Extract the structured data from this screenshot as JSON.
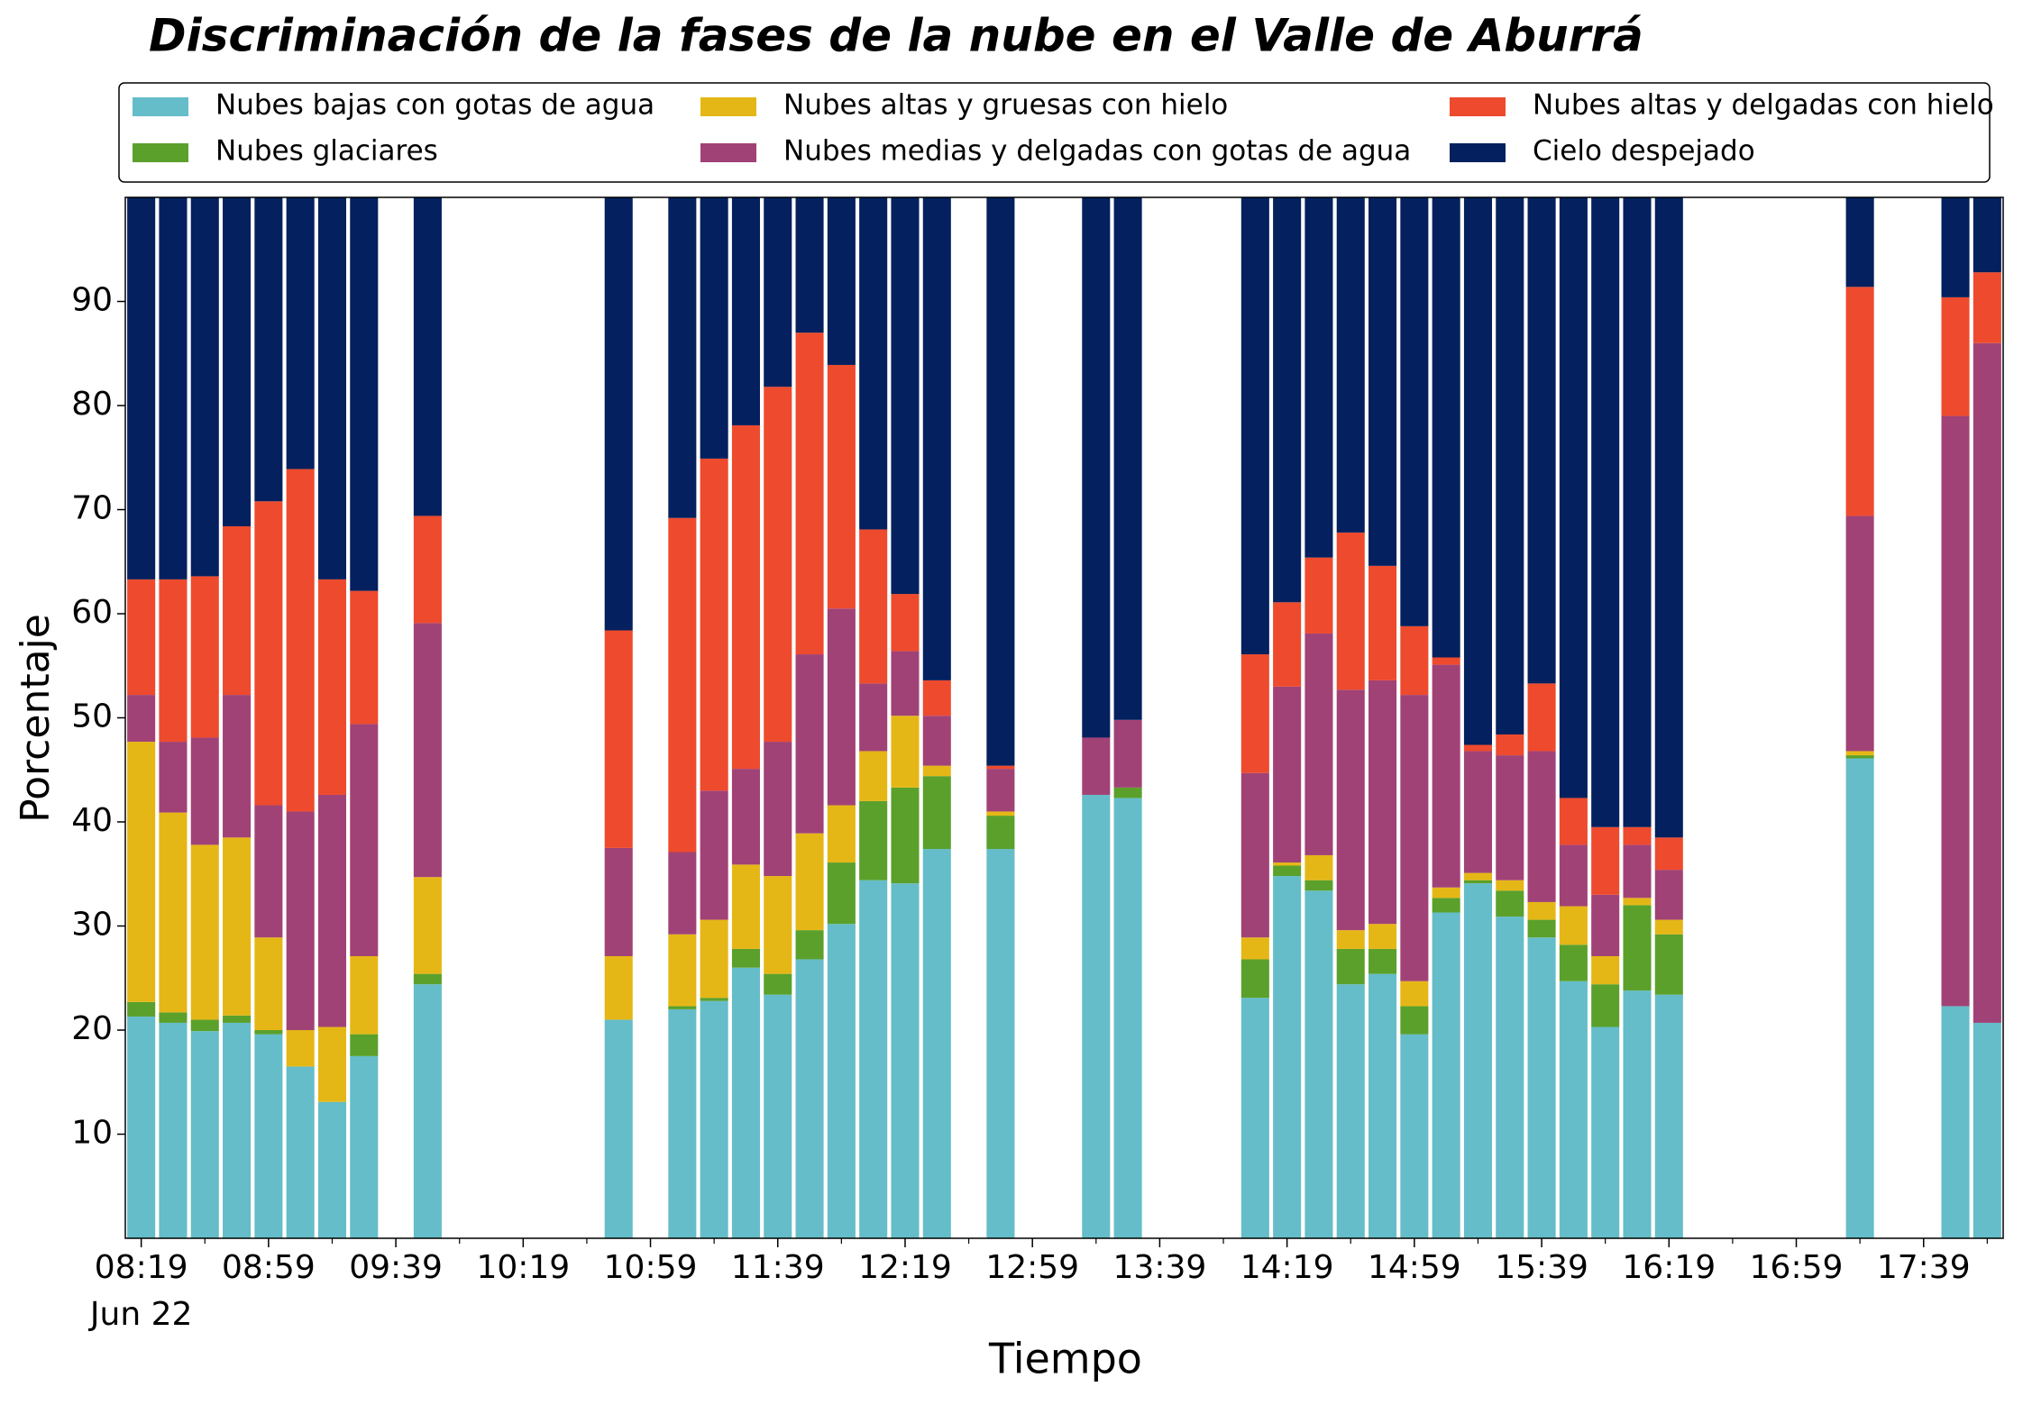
{
  "chart_data": {
    "type": "stacked_bar",
    "title": "Discriminación de la fases de la nube en el Valle de Aburrá",
    "x_label": "Tiempo",
    "y_label": "Porcentaje",
    "x": [
      "08:19",
      "08:29",
      "08:39",
      "08:49",
      "08:59",
      "09:09",
      "09:19",
      "09:29",
      "09:49",
      "10:49",
      "11:09",
      "11:19",
      "11:29",
      "11:39",
      "11:49",
      "11:59",
      "12:09",
      "12:19",
      "12:29",
      "12:49",
      "13:19",
      "13:29",
      "14:09",
      "14:19",
      "14:29",
      "14:39",
      "14:49",
      "14:59",
      "15:09",
      "15:19",
      "15:29",
      "15:39",
      "15:49",
      "15:59",
      "16:09",
      "16:19",
      "17:19",
      "17:49",
      "17:59"
    ],
    "series": [
      {
        "name": "Nubes bajas con gotas de agua",
        "color": "#65bdc9",
        "values": [
          21.3,
          20.7,
          19.9,
          20.7,
          19.6,
          16.5,
          13.1,
          17.5,
          24.4,
          21.0,
          22.0,
          22.8,
          26.0,
          23.4,
          26.8,
          30.2,
          34.4,
          34.1,
          37.4,
          37.4,
          42.6,
          42.3,
          23.1,
          34.8,
          33.4,
          24.4,
          25.4,
          19.6,
          31.3,
          34.1,
          30.9,
          28.9,
          24.7,
          20.3,
          23.8,
          23.4,
          46.1,
          22.3,
          20.7
        ]
      },
      {
        "name": "Nubes glaciares",
        "color": "#5ba02b",
        "values": [
          1.4,
          1.0,
          1.1,
          0.7,
          0.4,
          0,
          0,
          2.1,
          1.0,
          0,
          0.3,
          0.3,
          1.8,
          2.0,
          2.8,
          5.9,
          7.6,
          9.2,
          7.0,
          3.2,
          0,
          1.0,
          3.7,
          1.0,
          1.0,
          3.4,
          2.4,
          2.7,
          1.4,
          0.3,
          2.5,
          1.7,
          3.5,
          4.1,
          8.2,
          5.8,
          0.3,
          0,
          0
        ]
      },
      {
        "name": "Nubes altas y gruesas con hielo",
        "color": "#e5b716",
        "values": [
          25.0,
          19.2,
          16.8,
          17.1,
          8.9,
          3.5,
          7.2,
          7.5,
          9.3,
          6.1,
          6.9,
          7.5,
          8.1,
          9.4,
          9.3,
          5.5,
          4.8,
          6.9,
          1.0,
          0.4,
          0,
          0,
          2.1,
          0.3,
          2.4,
          1.8,
          2.4,
          2.4,
          1.0,
          0.7,
          1.0,
          1.7,
          3.7,
          2.7,
          0.7,
          1.4,
          0.4,
          0,
          0
        ]
      },
      {
        "name": "Nubes medias y delgadas con gotas de agua",
        "color": "#a14276",
        "values": [
          4.5,
          6.8,
          10.3,
          13.7,
          12.7,
          21.0,
          22.3,
          22.3,
          24.4,
          10.4,
          7.9,
          12.4,
          9.2,
          12.9,
          17.2,
          18.9,
          6.5,
          6.2,
          4.8,
          4.1,
          5.5,
          6.5,
          15.8,
          16.9,
          21.3,
          23.1,
          23.4,
          27.5,
          21.4,
          11.7,
          12.0,
          14.5,
          5.9,
          5.9,
          5.1,
          4.8,
          22.6,
          56.7,
          65.3
        ]
      },
      {
        "name": "Nubes altas y delgadas con hielo",
        "color": "#ee4a2d",
        "values": [
          11.1,
          15.6,
          15.5,
          16.2,
          29.2,
          32.9,
          20.7,
          12.8,
          10.3,
          20.9,
          32.1,
          31.9,
          33.0,
          34.1,
          30.9,
          23.4,
          14.8,
          5.5,
          3.4,
          0.3,
          0,
          0,
          11.4,
          8.1,
          7.3,
          15.1,
          11.0,
          6.6,
          0.7,
          0.6,
          2.0,
          6.5,
          4.5,
          6.5,
          1.7,
          3.1,
          22.0,
          11.4,
          6.8
        ]
      },
      {
        "name": "Cielo despejado",
        "color": "#04205e",
        "values": [
          36.7,
          36.7,
          36.4,
          31.6,
          29.2,
          26.1,
          36.7,
          37.8,
          30.6,
          41.6,
          30.8,
          25.1,
          21.9,
          18.2,
          13.0,
          16.1,
          31.9,
          38.1,
          46.4,
          54.6,
          51.9,
          50.2,
          43.9,
          38.9,
          34.6,
          32.2,
          35.4,
          41.2,
          44.2,
          52.6,
          51.6,
          46.7,
          57.7,
          60.5,
          60.5,
          61.5,
          8.6,
          9.6,
          7.2
        ]
      }
    ],
    "xlim": [
      "08:14",
      "18:04"
    ],
    "xticks": [
      "08:19",
      "08:59",
      "09:39",
      "10:19",
      "10:59",
      "11:39",
      "12:19",
      "12:59",
      "13:39",
      "14:19",
      "14:59",
      "15:39",
      "16:19",
      "16:59",
      "17:39"
    ],
    "xminorticks": [
      "08:39",
      "09:19",
      "09:59",
      "10:39",
      "11:19",
      "11:59",
      "12:39",
      "13:19",
      "13:59",
      "14:39",
      "15:19",
      "15:59",
      "16:39",
      "17:19",
      "17:59"
    ],
    "xtick_date": "Jun 22",
    "ylim": [
      0,
      100
    ],
    "yticks": [
      10,
      20,
      30,
      40,
      50,
      60,
      70,
      80,
      90
    ],
    "legend": "top",
    "legend_columns": 3
  }
}
